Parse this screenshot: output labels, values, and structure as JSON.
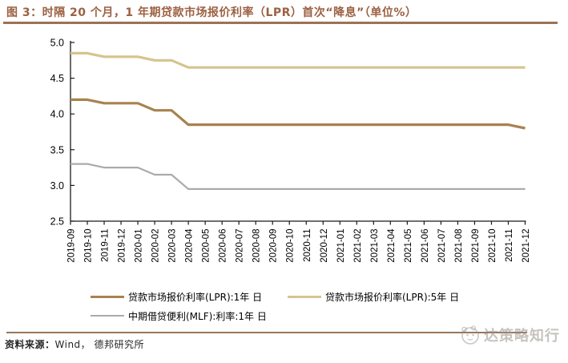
{
  "header": {
    "title": "图 3：时隔 20 个月，1 年期贷款市场报价利率（LPR）首次“降息”（单位%）"
  },
  "chart_data": {
    "type": "line",
    "title": "",
    "xlabel": "",
    "ylabel": "",
    "unit": "%",
    "x": [
      "2019-09",
      "2019-10",
      "2019-11",
      "2019-12",
      "2020-01",
      "2020-02",
      "2020-03",
      "2020-04",
      "2020-05",
      "2020-06",
      "2020-07",
      "2020-08",
      "2020-09",
      "2020-10",
      "2020-11",
      "2020-12",
      "2021-01",
      "2021-02",
      "2021-03",
      "2021-04",
      "2021-05",
      "2021-06",
      "2021-07",
      "2021-08",
      "2021-09",
      "2021-10",
      "2021-11",
      "2021-12"
    ],
    "series": [
      {
        "name": "贷款市场报价利率(LPR):1年 日",
        "color": "#A8824F",
        "line_width": 3.2,
        "values": [
          4.2,
          4.2,
          4.15,
          4.15,
          4.15,
          4.05,
          4.05,
          3.85,
          3.85,
          3.85,
          3.85,
          3.85,
          3.85,
          3.85,
          3.85,
          3.85,
          3.85,
          3.85,
          3.85,
          3.85,
          3.85,
          3.85,
          3.85,
          3.85,
          3.85,
          3.85,
          3.85,
          3.8
        ]
      },
      {
        "name": "贷款市场报价利率(LPR):5年 日",
        "color": "#D6C48E",
        "line_width": 3.2,
        "values": [
          4.85,
          4.85,
          4.8,
          4.8,
          4.8,
          4.75,
          4.75,
          4.65,
          4.65,
          4.65,
          4.65,
          4.65,
          4.65,
          4.65,
          4.65,
          4.65,
          4.65,
          4.65,
          4.65,
          4.65,
          4.65,
          4.65,
          4.65,
          4.65,
          4.65,
          4.65,
          4.65,
          4.65
        ]
      },
      {
        "name": "中期借贷便利(MLF):利率:1年 日",
        "color": "#ABABAB",
        "line_width": 2.2,
        "values": [
          3.3,
          3.3,
          3.25,
          3.25,
          3.25,
          3.15,
          3.15,
          2.95,
          2.95,
          2.95,
          2.95,
          2.95,
          2.95,
          2.95,
          2.95,
          2.95,
          2.95,
          2.95,
          2.95,
          2.95,
          2.95,
          2.95,
          2.95,
          2.95,
          2.95,
          2.95,
          2.95,
          2.95
        ]
      }
    ],
    "ylim": [
      2.5,
      5.0
    ],
    "yticks": [
      5.0,
      4.5,
      4.0,
      3.5,
      3.0,
      2.5
    ],
    "grid": false,
    "legend_position": "bottom"
  },
  "footer": {
    "source_label": "资料来源：",
    "source_text": "Wind， 德邦研究所"
  },
  "watermark": {
    "icon": "panda-circle-icon",
    "text": "达策略知行"
  },
  "colors": {
    "title": "#9B6142",
    "rule": "#9A7457",
    "axis": "#1a1a1a",
    "tick_label": "#000000"
  }
}
